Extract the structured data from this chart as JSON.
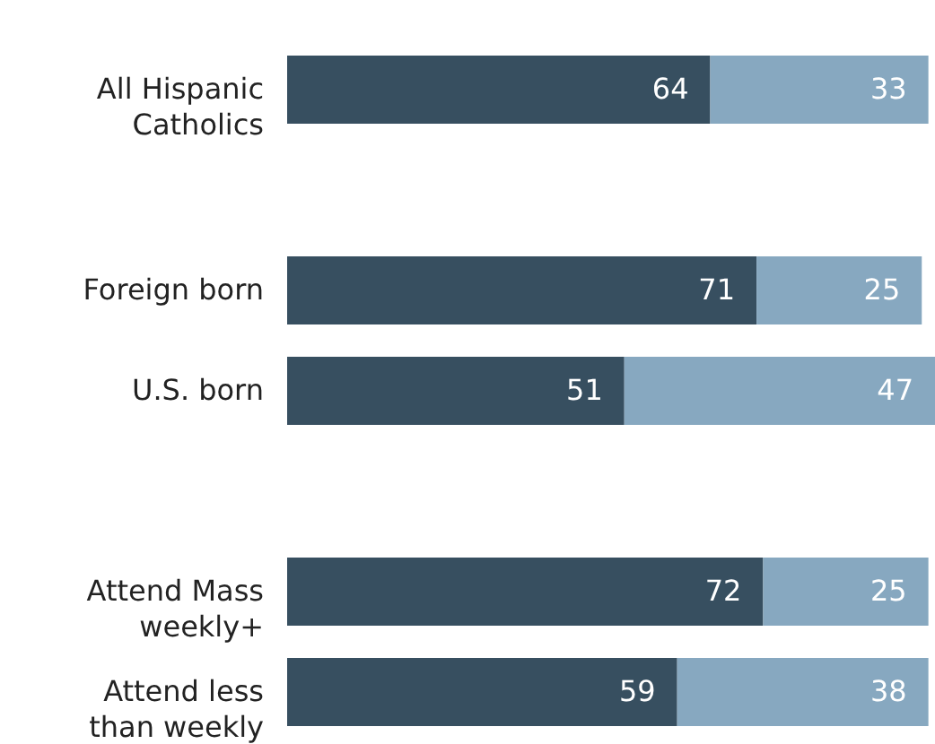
{
  "chart_data": {
    "type": "bar",
    "orientation": "horizontal",
    "stacked": true,
    "data_labels": true,
    "xlim": [
      0,
      98
    ],
    "categories": [
      "All Hispanic Catholics",
      null,
      "Foreign born",
      "U.S. born",
      null,
      "Attend Mass weekly+",
      "Attend less than weekly"
    ],
    "series": [
      {
        "color": "#374f60",
        "values": [
          64,
          null,
          71,
          51,
          null,
          72,
          59
        ]
      },
      {
        "color": "#87a8c0",
        "values": [
          33,
          null,
          25,
          47,
          null,
          25,
          38
        ]
      }
    ]
  }
}
